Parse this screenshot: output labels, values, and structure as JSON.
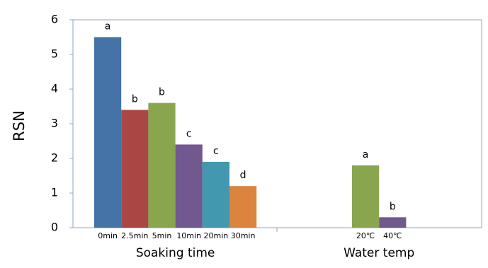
{
  "chart_data": {
    "type": "bar",
    "y_label": "RSN",
    "ylim": [
      0,
      6
    ],
    "yticks": [
      0,
      1,
      2,
      3,
      4,
      5,
      6
    ],
    "groups": [
      {
        "name": "Soaking time",
        "categories": [
          "0min",
          "2.5min",
          "5min",
          "10min",
          "20min",
          "30min"
        ],
        "values": [
          5.5,
          3.4,
          3.6,
          2.4,
          1.9,
          1.2
        ],
        "colors": [
          "#4572a7",
          "#aa4643",
          "#89a54e",
          "#71588f",
          "#4198af",
          "#db843d"
        ],
        "letters": [
          "a",
          "b",
          "b",
          "c",
          "c",
          "d"
        ]
      },
      {
        "name": "Water temp",
        "categories": [
          "20℃",
          "40℃"
        ],
        "values": [
          1.8,
          0.3
        ],
        "colors": [
          "#89a54e",
          "#71588f"
        ],
        "letters": [
          "a",
          "b"
        ]
      }
    ]
  }
}
